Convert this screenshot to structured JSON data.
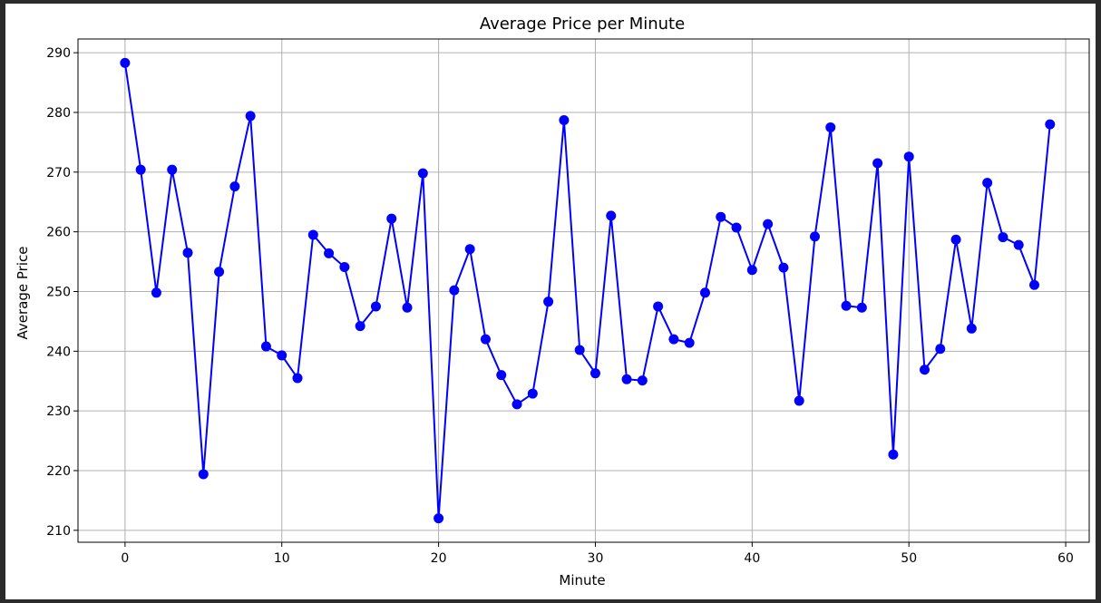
{
  "chart_data": {
    "type": "line",
    "title": "Average Price per Minute",
    "xlabel": "Minute",
    "ylabel": "Average Price",
    "xlim": [
      -3,
      61.5
    ],
    "ylim": [
      208,
      292.3
    ],
    "xticks": [
      0,
      10,
      20,
      30,
      40,
      50,
      60
    ],
    "yticks": [
      210,
      220,
      230,
      240,
      250,
      260,
      270,
      280,
      290
    ],
    "grid": true,
    "colors": {
      "line": "#0000ff",
      "grid": "#b0b0b0",
      "axes": "#000000",
      "frame_bg": "#2b2b2b"
    },
    "series": [
      {
        "marker": "circle",
        "x": [
          0,
          1,
          2,
          3,
          4,
          5,
          6,
          7,
          8,
          9,
          10,
          11,
          12,
          13,
          14,
          15,
          16,
          17,
          18,
          19,
          20,
          21,
          22,
          23,
          24,
          25,
          26,
          27,
          28,
          29,
          30,
          31,
          32,
          33,
          34,
          35,
          36,
          37,
          38,
          39,
          40,
          41,
          42,
          43,
          44,
          45,
          46,
          47,
          48,
          49,
          50,
          51,
          52,
          53,
          54,
          55,
          56,
          57,
          58,
          59
        ],
        "y": [
          288.3,
          270.4,
          249.8,
          270.4,
          256.5,
          219.4,
          253.3,
          267.6,
          279.4,
          240.8,
          239.3,
          235.5,
          259.5,
          256.4,
          254.1,
          244.2,
          247.5,
          262.2,
          247.3,
          269.8,
          212.0,
          250.2,
          257.1,
          242.0,
          236.0,
          231.1,
          232.9,
          248.3,
          278.7,
          240.2,
          236.3,
          262.7,
          235.3,
          235.1,
          247.5,
          242.0,
          241.4,
          249.8,
          262.5,
          260.7,
          253.6,
          261.3,
          254.0,
          231.7,
          259.2,
          277.5,
          247.6,
          247.3,
          271.5,
          222.7,
          272.6,
          236.9,
          240.4,
          258.7,
          243.8,
          268.2,
          259.1,
          257.8,
          251.1,
          278.0
        ]
      }
    ]
  }
}
